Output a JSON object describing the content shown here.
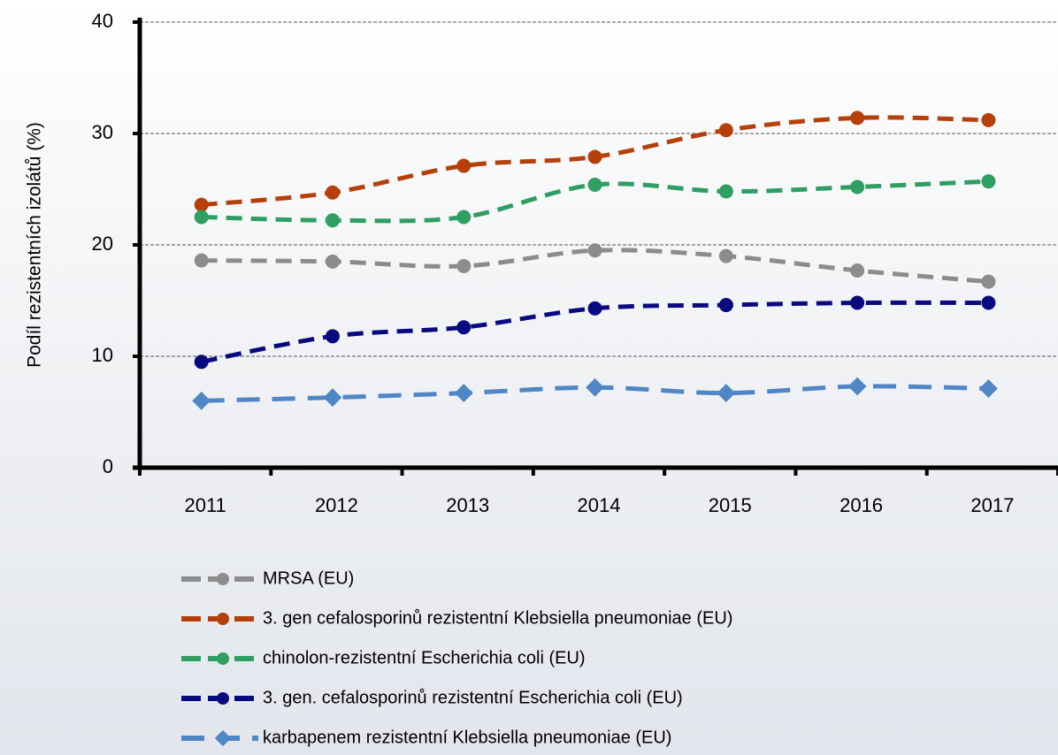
{
  "chart_data": {
    "type": "line",
    "y_label": "Podíl rezistentních izolátů (%)",
    "categories": [
      "2011",
      "2012",
      "2013",
      "2014",
      "2015",
      "2016",
      "2017"
    ],
    "series": [
      {
        "name": "MRSA (EU)",
        "color": "#8c8c8c",
        "marker": "circle",
        "values": [
          18.6,
          18.5,
          18.1,
          19.5,
          19.0,
          17.7,
          16.7
        ]
      },
      {
        "name": "3. gen cefalosporinů rezistentní Klebsiella pneumoniae (EU)",
        "color": "#b5400a",
        "marker": "circle",
        "values": [
          23.6,
          24.7,
          27.1,
          27.9,
          30.3,
          31.4,
          31.2
        ]
      },
      {
        "name": "chinolon-rezistentní Escherichia coli (EU)",
        "color": "#2e9e62",
        "marker": "circle",
        "values": [
          22.5,
          22.2,
          22.5,
          25.4,
          24.8,
          25.2,
          25.7
        ]
      },
      {
        "name": "3. gen. cefalosporinů rezistentní Escherichia coli (EU)",
        "color": "#0a0a80",
        "marker": "circle",
        "values": [
          9.5,
          11.8,
          12.6,
          14.3,
          14.6,
          14.8,
          14.8
        ]
      },
      {
        "name": "karbapenem rezistentní Klebsiella pneumoniae (EU)",
        "color": "#4f86c6",
        "marker": "diamond",
        "values": [
          6.0,
          6.3,
          6.7,
          7.2,
          6.7,
          7.3,
          7.1
        ]
      }
    ],
    "ylim": [
      0,
      40
    ],
    "yticks": [
      0,
      10,
      20,
      30,
      40
    ],
    "grid": true,
    "legend": "bottom"
  }
}
